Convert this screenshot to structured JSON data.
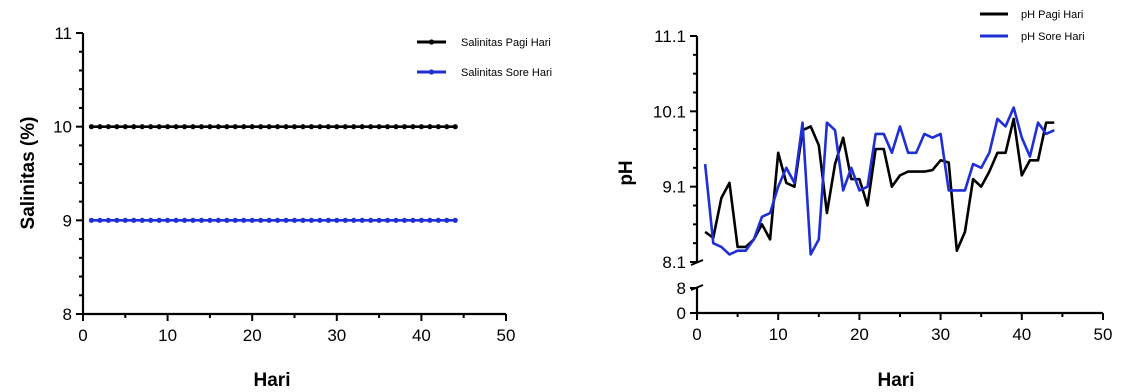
{
  "chart_data": [
    {
      "type": "line",
      "xlabel": "Hari",
      "ylabel": "Salinitas (%)",
      "xlim": [
        0,
        50
      ],
      "ylim": [
        8,
        11
      ],
      "xticks": [
        "0",
        "10",
        "20",
        "30",
        "40",
        "50"
      ],
      "yticks": [
        "8",
        "9",
        "10",
        "11"
      ],
      "legend_position": "top-right",
      "grid": false,
      "series": [
        {
          "name": "Salinitas Pagi Hari",
          "color": "#000000",
          "x": [
            1,
            2,
            3,
            4,
            5,
            6,
            7,
            8,
            9,
            10,
            11,
            12,
            13,
            14,
            15,
            16,
            17,
            18,
            19,
            20,
            21,
            22,
            23,
            24,
            25,
            26,
            27,
            28,
            29,
            30,
            31,
            32,
            33,
            34,
            35,
            36,
            37,
            38,
            39,
            40,
            41,
            42,
            43,
            44
          ],
          "y": [
            10,
            10,
            10,
            10,
            10,
            10,
            10,
            10,
            10,
            10,
            10,
            10,
            10,
            10,
            10,
            10,
            10,
            10,
            10,
            10,
            10,
            10,
            10,
            10,
            10,
            10,
            10,
            10,
            10,
            10,
            10,
            10,
            10,
            10,
            10,
            10,
            10,
            10,
            10,
            10,
            10,
            10,
            10,
            10
          ]
        },
        {
          "name": "Salinitas Sore Hari",
          "color": "#1f2fd6",
          "x": [
            1,
            2,
            3,
            4,
            5,
            6,
            7,
            8,
            9,
            10,
            11,
            12,
            13,
            14,
            15,
            16,
            17,
            18,
            19,
            20,
            21,
            22,
            23,
            24,
            25,
            26,
            27,
            28,
            29,
            30,
            31,
            32,
            33,
            34,
            35,
            36,
            37,
            38,
            39,
            40,
            41,
            42,
            43,
            44
          ],
          "y": [
            9,
            9,
            9,
            9,
            9,
            9,
            9,
            9,
            9,
            9,
            9,
            9,
            9,
            9,
            9,
            9,
            9,
            9,
            9,
            9,
            9,
            9,
            9,
            9,
            9,
            9,
            9,
            9,
            9,
            9,
            9,
            9,
            9,
            9,
            9,
            9,
            9,
            9,
            9,
            9,
            9,
            9,
            9,
            9
          ]
        }
      ]
    },
    {
      "type": "line",
      "xlabel": "Hari",
      "ylabel": "pH",
      "xlim": [
        0,
        50
      ],
      "ylim": [
        8.1,
        11.1
      ],
      "ylim_lower_segment": [
        0,
        8
      ],
      "axis_break": true,
      "xticks": [
        "0",
        "10",
        "20",
        "30",
        "40",
        "50"
      ],
      "yticks": [
        "8.1",
        "9.1",
        "10.1",
        "11.1"
      ],
      "yticks_lower_segment": [
        "0",
        "8"
      ],
      "legend_position": "top-right",
      "grid": false,
      "series": [
        {
          "name": "pH Pagi Hari",
          "color": "#000000",
          "x": [
            1,
            2,
            3,
            4,
            5,
            6,
            7,
            8,
            9,
            10,
            11,
            12,
            13,
            14,
            15,
            16,
            17,
            18,
            19,
            20,
            21,
            22,
            23,
            24,
            25,
            26,
            27,
            28,
            29,
            30,
            31,
            32,
            33,
            34,
            35,
            36,
            37,
            38,
            39,
            40,
            41,
            42,
            43,
            44
          ],
          "y": [
            8.5,
            8.42,
            8.95,
            9.15,
            8.3,
            8.3,
            8.4,
            8.6,
            8.4,
            9.55,
            9.15,
            9.1,
            9.85,
            9.9,
            9.65,
            8.75,
            9.4,
            9.75,
            9.2,
            9.2,
            8.85,
            9.6,
            9.6,
            9.1,
            9.25,
            9.3,
            9.3,
            9.3,
            9.32,
            9.45,
            9.42,
            8.25,
            8.5,
            9.2,
            9.1,
            9.3,
            9.55,
            9.55,
            10.0,
            9.25,
            9.45,
            9.45,
            9.95,
            9.95
          ]
        },
        {
          "name": "pH Sore Hari",
          "color": "#1f2fd6",
          "x": [
            1,
            2,
            3,
            4,
            5,
            6,
            7,
            8,
            9,
            10,
            11,
            12,
            13,
            14,
            15,
            16,
            17,
            18,
            19,
            20,
            21,
            22,
            23,
            24,
            25,
            26,
            27,
            28,
            29,
            30,
            31,
            32,
            33,
            34,
            35,
            36,
            37,
            38,
            39,
            40,
            41,
            42,
            43,
            44
          ],
          "y": [
            9.4,
            8.35,
            8.3,
            8.2,
            8.25,
            8.25,
            8.4,
            8.7,
            8.75,
            9.1,
            9.35,
            9.15,
            9.95,
            8.2,
            8.4,
            9.95,
            9.85,
            9.05,
            9.35,
            9.05,
            9.1,
            9.8,
            9.8,
            9.55,
            9.9,
            9.55,
            9.55,
            9.8,
            9.75,
            9.8,
            9.05,
            9.05,
            9.05,
            9.4,
            9.35,
            9.55,
            10.0,
            9.9,
            10.15,
            9.75,
            9.5,
            9.95,
            9.8,
            9.85
          ]
        }
      ]
    }
  ]
}
